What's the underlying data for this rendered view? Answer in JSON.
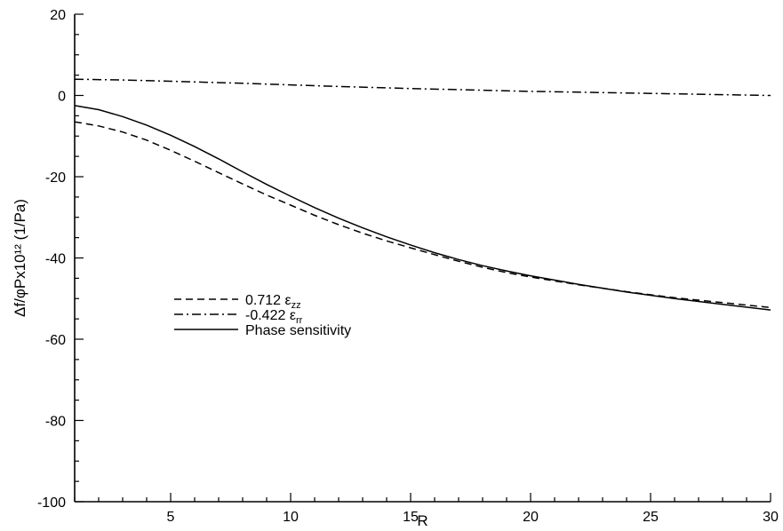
{
  "chart_data": {
    "type": "line",
    "xlabel": "R",
    "ylabel": "Δf/φPx10¹² (1/Pa)",
    "xlim": [
      1,
      30
    ],
    "ylim": [
      -100,
      20
    ],
    "x_ticks": [
      5,
      10,
      15,
      20,
      25,
      30
    ],
    "x_tick_labels": [
      "5",
      "10",
      "15",
      "20",
      "25",
      "30"
    ],
    "y_ticks": [
      -100,
      -80,
      -60,
      -40,
      -20,
      0,
      20
    ],
    "y_tick_labels": [
      "-100",
      "-80",
      "-60",
      "-40",
      "-20",
      "0",
      "20"
    ],
    "grid": false,
    "legend_position": "center-left",
    "series": [
      {
        "name": "0.712 εzz",
        "legend": {
          "main": "0.712 ε",
          "sub": "zz"
        },
        "style": "dashed",
        "x": [
          1,
          2,
          3,
          4,
          5,
          6,
          7,
          8,
          9,
          10,
          11,
          12,
          13,
          14,
          15,
          16,
          17,
          18,
          19,
          20,
          22,
          24,
          26,
          28,
          30
        ],
        "y": [
          -6.5,
          -7.5,
          -9.0,
          -11.0,
          -13.5,
          -16.2,
          -19.0,
          -21.8,
          -24.5,
          -27.0,
          -29.5,
          -31.8,
          -33.9,
          -35.8,
          -37.5,
          -39.2,
          -40.8,
          -42.3,
          -43.6,
          -44.7,
          -46.6,
          -48.3,
          -49.8,
          -51.0,
          -52.2
        ]
      },
      {
        "name": "-0.422 εrr",
        "legend": {
          "main": "-0.422 ε",
          "sub": "rr"
        },
        "style": "dashdot",
        "x": [
          1,
          3,
          5,
          8,
          10,
          12,
          15,
          18,
          20,
          22,
          25,
          28,
          30
        ],
        "y": [
          4.0,
          3.8,
          3.5,
          3.0,
          2.6,
          2.2,
          1.7,
          1.3,
          1.0,
          0.8,
          0.5,
          0.2,
          0.0
        ]
      },
      {
        "name": "Phase sensitivity",
        "legend": {
          "main": "Phase sensitivity",
          "sub": ""
        },
        "style": "solid",
        "x": [
          1,
          2,
          3,
          4,
          5,
          6,
          7,
          8,
          9,
          10,
          11,
          12,
          13,
          14,
          15,
          16,
          17,
          18,
          19,
          20,
          22,
          24,
          26,
          28,
          30
        ],
        "y": [
          -2.5,
          -3.5,
          -5.2,
          -7.3,
          -9.8,
          -12.6,
          -15.6,
          -18.8,
          -21.9,
          -24.8,
          -27.6,
          -30.2,
          -32.6,
          -34.8,
          -36.8,
          -38.7,
          -40.4,
          -41.9,
          -43.2,
          -44.4,
          -46.5,
          -48.4,
          -50.0,
          -51.4,
          -52.8
        ]
      }
    ]
  }
}
